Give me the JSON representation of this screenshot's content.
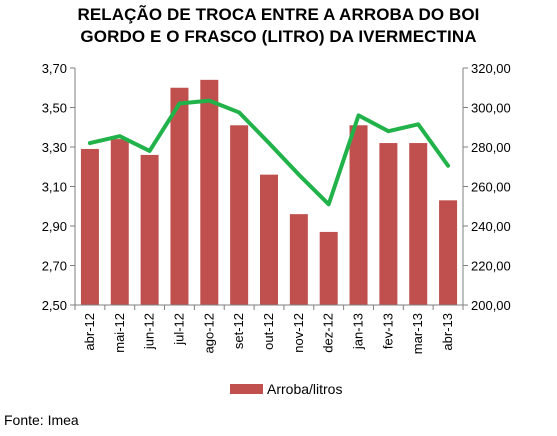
{
  "chart_data": {
    "type": "bar+line",
    "title": [
      "RELAÇÃO DE TROCA ENTRE A ARROBA DO BOI",
      "GORDO E O FRASCO (LITRO) DA IVERMECTINA"
    ],
    "categories": [
      "abr-12",
      "mai-12",
      "jun-12",
      "jul-12",
      "ago-12",
      "set-12",
      "out-12",
      "nov-12",
      "dez-12",
      "jan-13",
      "fev-13",
      "mar-13",
      "abr-13"
    ],
    "series": [
      {
        "name": "Arroba/litros",
        "type": "bar",
        "axis": "left",
        "color": "#c0504d",
        "values": [
          3.29,
          3.34,
          3.26,
          3.6,
          3.64,
          3.41,
          3.16,
          2.96,
          2.87,
          3.41,
          3.32,
          3.32,
          3.03
        ]
      },
      {
        "name": "",
        "type": "line",
        "axis": "right",
        "color": "#21b24a",
        "values": [
          282,
          285.5,
          278,
          302,
          303.5,
          297.5,
          282,
          266,
          251,
          296,
          288,
          291.5,
          270.5
        ]
      }
    ],
    "left_axis": {
      "ylim": [
        2.5,
        3.7
      ],
      "ticks": [
        "3,70",
        "3,50",
        "3,30",
        "3,10",
        "2,90",
        "2,70",
        "2,50"
      ]
    },
    "right_axis": {
      "ylim": [
        200,
        320
      ],
      "ticks": [
        "320,00",
        "300,00",
        "280,00",
        "260,00",
        "240,00",
        "220,00",
        "200,00"
      ]
    },
    "grid": false,
    "legend_position": "bottom"
  },
  "legend": {
    "label": "Arroba/litros"
  },
  "source": "Fonte: Imea"
}
